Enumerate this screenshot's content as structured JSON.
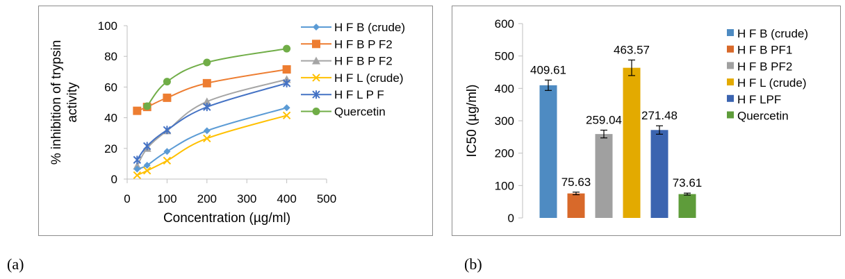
{
  "chart_data": [
    {
      "type": "line",
      "xlabel": "Concentration (µg/ml)",
      "ylabel": [
        "% inhibition of  trypsin",
        "activity"
      ],
      "xlim": [
        0,
        500
      ],
      "ylim": [
        0,
        100
      ],
      "xticks": [
        0,
        100,
        200,
        300,
        400,
        500
      ],
      "yticks": [
        0,
        20,
        40,
        60,
        80,
        100
      ],
      "grid": false,
      "legend_position": "right",
      "x": [
        25,
        50,
        100,
        200,
        400
      ],
      "series": [
        {
          "name": "H F B (crude)",
          "color": "#5b9bd5",
          "marker": "diamond",
          "values": [
            6.5,
            9,
            18,
            31.5,
            46.5
          ]
        },
        {
          "name": "H F B P F2",
          "color": "#ed7d31",
          "marker": "square",
          "values": [
            44.5,
            47,
            53,
            62.5,
            71.5
          ]
        },
        {
          "name": "H F B P F2",
          "color": "#a5a5a5",
          "marker": "triangle",
          "values": [
            8.5,
            20,
            31.5,
            50.5,
            65
          ]
        },
        {
          "name": "H F L (crude)",
          "color": "#ffc000",
          "marker": "x",
          "values": [
            2.5,
            5.5,
            12,
            26.5,
            41.5
          ]
        },
        {
          "name": "H F L P F",
          "color": "#4472c4",
          "marker": "star",
          "values": [
            12.5,
            21.5,
            32,
            47,
            62.5
          ]
        },
        {
          "name": "Quercetin",
          "color": "#70ad47",
          "marker": "circle",
          "values": [
            null,
            47.5,
            63.5,
            76,
            85
          ]
        }
      ]
    },
    {
      "type": "bar",
      "ylabel": "IC50 (µg/ml)",
      "ylim": [
        0,
        600
      ],
      "yticks": [
        0,
        100,
        200,
        300,
        400,
        500,
        600
      ],
      "grid": false,
      "legend_position": "right",
      "categories": [
        "H F B (crude)",
        "H F B PF1",
        "H F B PF2",
        "H F L (crude)",
        "H F LPF",
        "Quercetin"
      ],
      "values": [
        409.61,
        75.63,
        259.04,
        463.57,
        271.48,
        73.61
      ],
      "labels": [
        "409.61",
        "75.63",
        "259.04",
        "463.57",
        "271.48",
        "73.61"
      ],
      "errors": [
        16,
        4,
        12,
        24,
        13,
        3
      ],
      "colors": [
        "#4e8bc2",
        "#d8692a",
        "#a0a0a0",
        "#e3aa00",
        "#3b64b0",
        "#5e9c3a"
      ]
    }
  ],
  "captions": {
    "a": "(a)",
    "b": "(b)"
  }
}
